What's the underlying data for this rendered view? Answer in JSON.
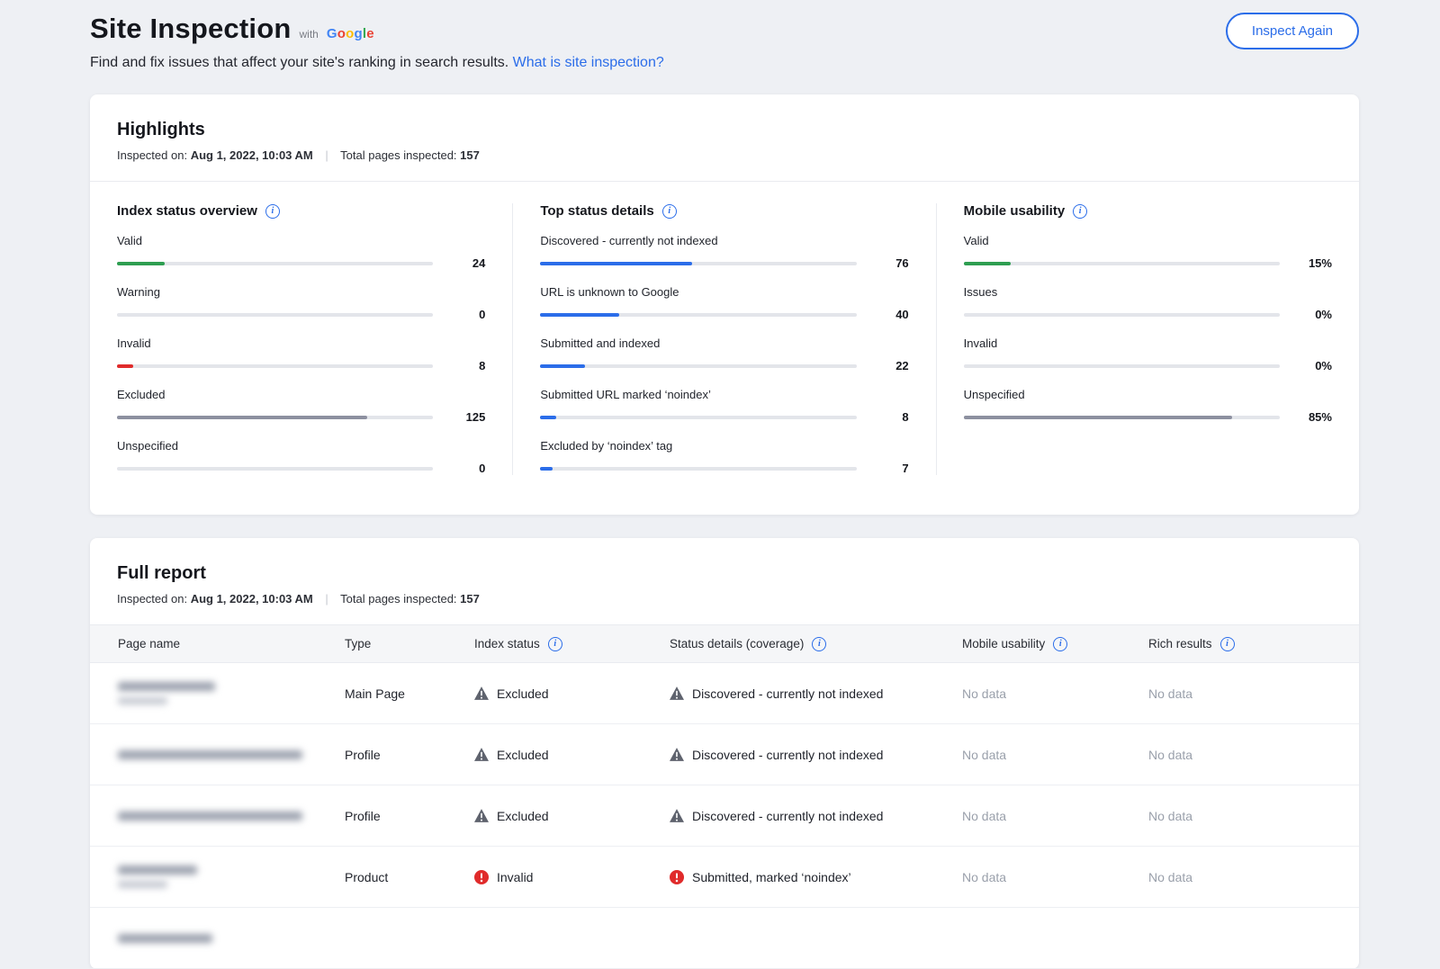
{
  "accent": "#2b6de9",
  "header": {
    "title": "Site Inspection",
    "with_label": "with",
    "google_letters": [
      {
        "ch": "G",
        "color": "#4285F4"
      },
      {
        "ch": "o",
        "color": "#EA4335"
      },
      {
        "ch": "o",
        "color": "#FBBC05"
      },
      {
        "ch": "g",
        "color": "#4285F4"
      },
      {
        "ch": "l",
        "color": "#34A853"
      },
      {
        "ch": "e",
        "color": "#EA4335"
      }
    ],
    "subtitle": "Find and fix issues that affect your site's ranking in search results.",
    "link_label": "What is site inspection?",
    "inspect_again_label": "Inspect Again"
  },
  "highlights": {
    "title": "Highlights",
    "inspected_on_label": "Inspected on:",
    "inspected_on_value": "Aug 1, 2022, 10:03 AM",
    "separator": "|",
    "total_label": "Total pages inspected:",
    "total_value": "157",
    "columns": [
      {
        "heading": "Index status overview",
        "metrics": [
          {
            "label": "Valid",
            "value": "24",
            "percent": 15,
            "color": "#2e9e51"
          },
          {
            "label": "Warning",
            "value": "0",
            "percent": 0,
            "color": "#f5a623"
          },
          {
            "label": "Invalid",
            "value": "8",
            "percent": 5,
            "color": "#e02b2b"
          },
          {
            "label": "Excluded",
            "value": "125",
            "percent": 79,
            "color": "#8d90a0"
          },
          {
            "label": "Unspecified",
            "value": "0",
            "percent": 0,
            "color": "#8d90a0"
          }
        ]
      },
      {
        "heading": "Top status details",
        "metrics": [
          {
            "label": "Discovered - currently not indexed",
            "value": "76",
            "percent": 48,
            "color": "#2b6de9"
          },
          {
            "label": "URL is unknown to Google",
            "value": "40",
            "percent": 25,
            "color": "#2b6de9"
          },
          {
            "label": "Submitted and indexed",
            "value": "22",
            "percent": 14,
            "color": "#2b6de9"
          },
          {
            "label": "Submitted URL marked ‘noindex’",
            "value": "8",
            "percent": 5,
            "color": "#2b6de9"
          },
          {
            "label": "Excluded by ‘noindex’ tag",
            "value": "7",
            "percent": 4,
            "color": "#2b6de9"
          }
        ]
      },
      {
        "heading": "Mobile usability",
        "metrics": [
          {
            "label": "Valid",
            "value": "15%",
            "percent": 15,
            "color": "#2e9e51"
          },
          {
            "label": "Issues",
            "value": "0%",
            "percent": 0,
            "color": "#f5a623"
          },
          {
            "label": "Invalid",
            "value": "0%",
            "percent": 0,
            "color": "#e02b2b"
          },
          {
            "label": "Unspecified",
            "value": "85%",
            "percent": 85,
            "color": "#8d90a0"
          }
        ]
      }
    ]
  },
  "full_report": {
    "title": "Full report",
    "inspected_on_label": "Inspected on:",
    "inspected_on_value": "Aug 1, 2022, 10:03 AM",
    "separator": "|",
    "total_label": "Total pages inspected:",
    "total_value": "157",
    "table": {
      "headers": [
        {
          "label": "Page name",
          "info": false
        },
        {
          "label": "Type",
          "info": false
        },
        {
          "label": "Index status",
          "info": true
        },
        {
          "label": "Status details (coverage)",
          "info": true
        },
        {
          "label": "Mobile usability",
          "info": true
        },
        {
          "label": "Rich results",
          "info": true
        }
      ],
      "rows": [
        {
          "page_name_redacted": true,
          "redacted_line_widths": [
            108,
            55
          ],
          "type": "Main Page",
          "index_status": {
            "icon": "warning",
            "label": "Excluded"
          },
          "status_details": {
            "icon": "warning",
            "label": "Discovered - currently not indexed"
          },
          "mobile_usability": "No data",
          "rich_results": "No data"
        },
        {
          "page_name_redacted": true,
          "redacted_line_widths": [
            205
          ],
          "type": "Profile",
          "index_status": {
            "icon": "warning",
            "label": "Excluded"
          },
          "status_details": {
            "icon": "warning",
            "label": "Discovered - currently not indexed"
          },
          "mobile_usability": "No data",
          "rich_results": "No data"
        },
        {
          "page_name_redacted": true,
          "redacted_line_widths": [
            205
          ],
          "type": "Profile",
          "index_status": {
            "icon": "warning",
            "label": "Excluded"
          },
          "status_details": {
            "icon": "warning",
            "label": "Discovered - currently not indexed"
          },
          "mobile_usability": "No data",
          "rich_results": "No data"
        },
        {
          "page_name_redacted": true,
          "redacted_line_widths": [
            88,
            55
          ],
          "type": "Product",
          "index_status": {
            "icon": "error",
            "label": "Invalid"
          },
          "status_details": {
            "icon": "error",
            "label": "Submitted, marked ‘noindex’"
          },
          "mobile_usability": "No data",
          "rich_results": "No data"
        },
        {
          "page_name_redacted": true,
          "redacted_line_widths": [
            105
          ],
          "partial": true,
          "type": "",
          "index_status": null,
          "status_details": null,
          "mobile_usability": "",
          "rich_results": ""
        }
      ]
    }
  }
}
